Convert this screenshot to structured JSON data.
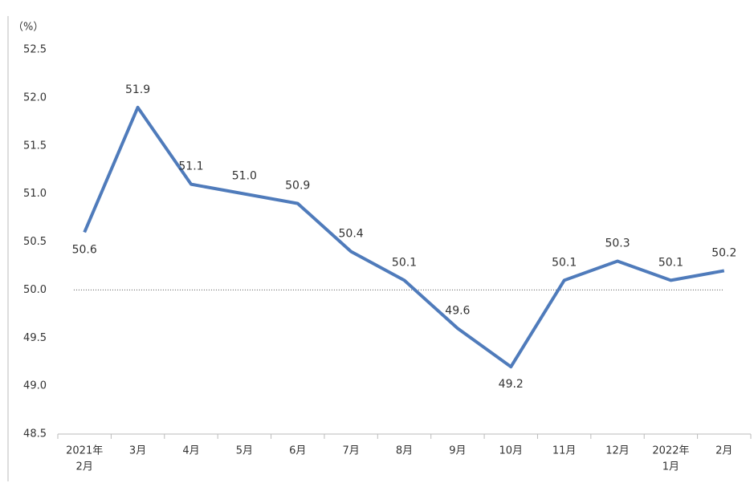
{
  "chart_data": {
    "type": "line",
    "unit_label": "（%）",
    "categories": [
      [
        "2021年",
        "2月"
      ],
      "3月",
      "4月",
      "5月",
      "6月",
      "7月",
      "8月",
      "9月",
      "10月",
      "11月",
      "12月",
      [
        "2022年",
        "1月"
      ],
      "2月"
    ],
    "series": [
      {
        "color": "#4f7bbb",
        "values": [
          50.6,
          51.9,
          51.1,
          51.0,
          50.9,
          50.4,
          50.1,
          49.6,
          49.2,
          50.1,
          50.3,
          50.1,
          50.2
        ],
        "value_labels": [
          "50.6",
          "51.9",
          "51.1",
          "51.0",
          "50.9",
          "50.4",
          "50.1",
          "49.6",
          "49.2",
          "50.1",
          "50.3",
          "50.1",
          "50.2"
        ]
      }
    ],
    "ylim": [
      48.5,
      52.5
    ],
    "yticks": [
      48.5,
      {
        "value": 49,
        "label": "49.0"
      },
      49.5,
      {
        "value": 50,
        "label": "50.0"
      },
      50.5,
      {
        "value": 51,
        "label": "51.0"
      },
      51.5,
      {
        "value": 52,
        "label": "52.0"
      },
      52.5
    ],
    "reference_line": 50
  }
}
